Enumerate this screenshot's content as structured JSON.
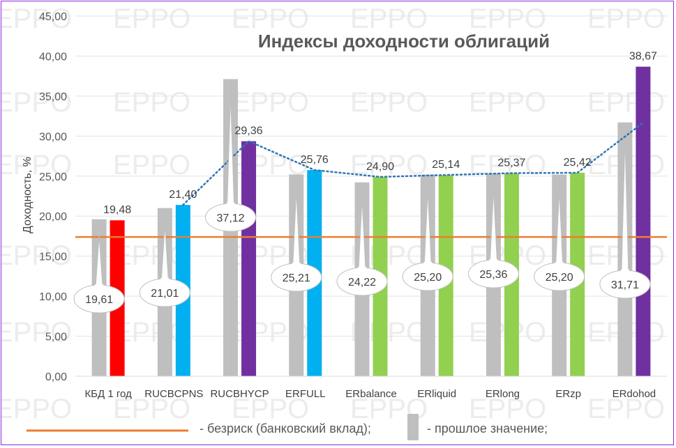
{
  "watermark": "EPPO",
  "chart_data": {
    "type": "bar",
    "title": "Индексы доходности облигаций",
    "ylabel": "Доходность, %",
    "xlabel": "",
    "ylim": [
      0,
      45
    ],
    "ytick_step": 5,
    "y_tick_labels": [
      "0,00",
      "5,00",
      "10,00",
      "15,00",
      "20,00",
      "25,00",
      "30,00",
      "35,00",
      "40,00",
      "45,00"
    ],
    "categories": [
      "КБД 1 год",
      "RUCBCPNS",
      "RUCBHYCP",
      "ERFULL",
      "ERbalance",
      "ERliquid",
      "ERlong",
      "ERzp",
      "ERdohod"
    ],
    "series": [
      {
        "name": "прошлое значение",
        "color": "#bfbfbf",
        "values": [
          19.61,
          21.01,
          37.12,
          25.21,
          24.22,
          25.2,
          25.36,
          25.2,
          31.71
        ],
        "labels": [
          "19,61",
          "21,01",
          "37,12",
          "25,21",
          "24,22",
          "25,20",
          "25,36",
          "25,20",
          "31,71"
        ]
      },
      {
        "name": "",
        "colors": [
          "#ff0000",
          "#00b0f0",
          "#7030a0",
          "#00b0f0",
          "#92d050",
          "#92d050",
          "#92d050",
          "#92d050",
          "#7030a0"
        ],
        "values": [
          19.48,
          21.4,
          29.36,
          25.76,
          24.9,
          25.14,
          25.37,
          25.42,
          38.67
        ],
        "labels": [
          "19,48",
          "21,40",
          "29,36",
          "25,76",
          "24,90",
          "25,14",
          "25,37",
          "25,42",
          "38,67"
        ]
      }
    ],
    "riskfree_value": 17.4,
    "riskfree_color": "#ed7d31",
    "trend_color": "#2e75b6",
    "legend": {
      "riskfree_label": "- безриск (банковский вклад);",
      "previous_label": "- прошлое значение;"
    }
  }
}
